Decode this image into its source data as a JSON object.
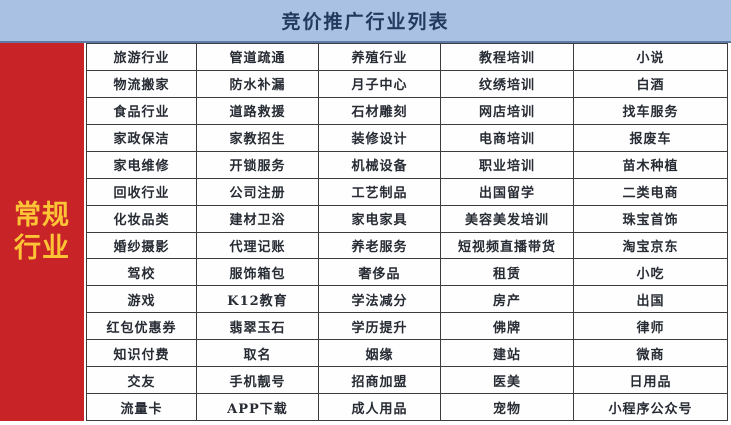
{
  "header": {
    "title": "竞价推广行业列表"
  },
  "sidebar": {
    "label": "常规行业",
    "line1": "常规",
    "line2": "行业"
  },
  "table": {
    "row_count": 14,
    "columns": [
      [
        "旅游行业",
        "物流搬家",
        "食品行业",
        "家政保洁",
        "家电维修",
        "回收行业",
        "化妆品类",
        "婚纱摄影",
        "驾校",
        "游戏",
        "红包优惠券",
        "知识付费",
        "交友",
        "流量卡"
      ],
      [
        "管道疏通",
        "防水补漏",
        "道路救援",
        "家教招生",
        "开锁服务",
        "公司注册",
        "建材卫浴",
        "代理记账",
        "服饰箱包",
        "K12教育",
        "翡翠玉石",
        "取名",
        "手机靓号",
        "APP下载"
      ],
      [
        "养殖行业",
        "月子中心",
        "石材雕刻",
        "装修设计",
        "机械设备",
        "工艺制品",
        "家电家具",
        "养老服务",
        "奢侈品",
        "学法减分",
        "学历提升",
        "姻缘",
        "招商加盟",
        "成人用品"
      ],
      [
        "教程培训",
        "纹绣培训",
        "网店培训",
        "电商培训",
        "职业培训",
        "出国留学",
        "美容美发培训",
        "短视频直播带货",
        "租赁",
        "房产",
        "佛牌",
        "建站",
        "医美",
        "宠物"
      ],
      [
        "小说",
        "白酒",
        "找车服务",
        "报废车",
        "苗木种植",
        "二类电商",
        "珠宝首饰",
        "淘宝京东",
        "小吃",
        "出国",
        "律师",
        "微商",
        "日用品",
        "小程序公众号"
      ]
    ]
  },
  "colors": {
    "header_background": "#a9c1e2",
    "header_border": "#5d7ba6",
    "title_text": "#223a5e",
    "sidebar_background": "#c82428",
    "sidebar_text": "#fdc436",
    "cell_background": "#fefefe",
    "cell_border": "#3c3c3c",
    "cell_text": "#272b33"
  }
}
